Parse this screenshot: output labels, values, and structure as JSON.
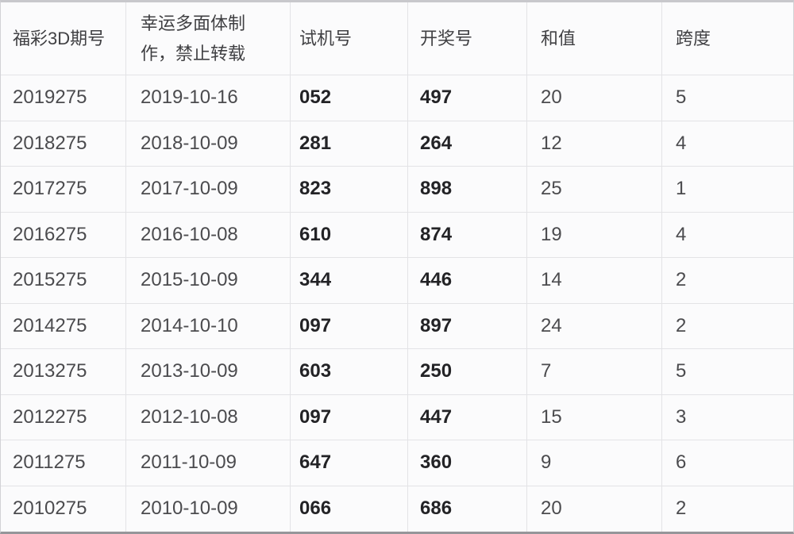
{
  "colors": {
    "background": "#fbfbfc",
    "grid_border": "#e3e3e6",
    "regular_text": "#4b4b4e",
    "bold_text": "#232326"
  },
  "table": {
    "headers": [
      "福彩3D期号",
      "幸运多面体制作，禁止转载",
      "试机号",
      "开奖号",
      "和值",
      "跨度"
    ],
    "rows": [
      {
        "period": "2019275",
        "date": "2019-10-16",
        "test": "052",
        "draw": "497",
        "sum": "20",
        "span": "5"
      },
      {
        "period": "2018275",
        "date": "2018-10-09",
        "test": "281",
        "draw": "264",
        "sum": "12",
        "span": "4"
      },
      {
        "period": "2017275",
        "date": "2017-10-09",
        "test": "823",
        "draw": "898",
        "sum": "25",
        "span": "1"
      },
      {
        "period": "2016275",
        "date": "2016-10-08",
        "test": "610",
        "draw": "874",
        "sum": "19",
        "span": "4"
      },
      {
        "period": "2015275",
        "date": "2015-10-09",
        "test": "344",
        "draw": "446",
        "sum": "14",
        "span": "2"
      },
      {
        "period": "2014275",
        "date": "2014-10-10",
        "test": "097",
        "draw": "897",
        "sum": "24",
        "span": "2"
      },
      {
        "period": "2013275",
        "date": "2013-10-09",
        "test": "603",
        "draw": "250",
        "sum": "7",
        "span": "5"
      },
      {
        "period": "2012275",
        "date": "2012-10-08",
        "test": "097",
        "draw": "447",
        "sum": "15",
        "span": "3"
      },
      {
        "period": "2011275",
        "date": "2011-10-09",
        "test": "647",
        "draw": "360",
        "sum": "9",
        "span": "6"
      },
      {
        "period": "2010275",
        "date": "2010-10-09",
        "test": "066",
        "draw": "686",
        "sum": "20",
        "span": "2"
      }
    ]
  }
}
